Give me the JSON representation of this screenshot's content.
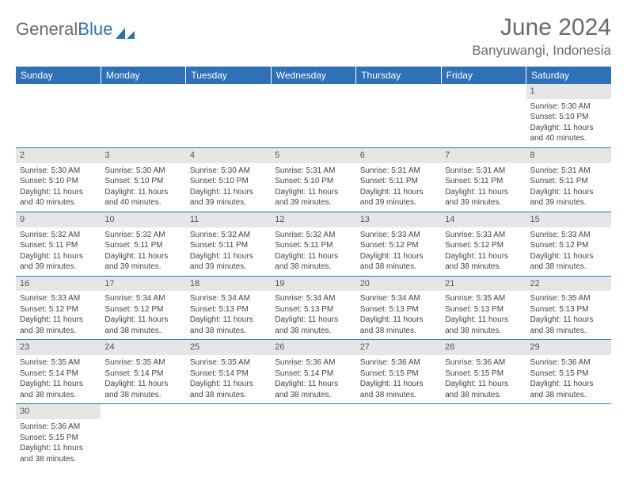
{
  "brand": {
    "part1": "General",
    "part2": "Blue"
  },
  "title": "June 2024",
  "location": "Banyuwangi, Indonesia",
  "colors": {
    "header_bg": "#2d72b8",
    "header_text": "#ffffff",
    "daynum_bg": "#e6e6e6",
    "text": "#444444",
    "title_color": "#6a6a6a",
    "row_border": "#2d72b8"
  },
  "weekdays": [
    "Sunday",
    "Monday",
    "Tuesday",
    "Wednesday",
    "Thursday",
    "Friday",
    "Saturday"
  ],
  "weeks": [
    [
      null,
      null,
      null,
      null,
      null,
      null,
      {
        "n": "1",
        "sr": "5:30 AM",
        "ss": "5:10 PM",
        "dl": "11 hours and 40 minutes."
      }
    ],
    [
      {
        "n": "2",
        "sr": "5:30 AM",
        "ss": "5:10 PM",
        "dl": "11 hours and 40 minutes."
      },
      {
        "n": "3",
        "sr": "5:30 AM",
        "ss": "5:10 PM",
        "dl": "11 hours and 40 minutes."
      },
      {
        "n": "4",
        "sr": "5:30 AM",
        "ss": "5:10 PM",
        "dl": "11 hours and 39 minutes."
      },
      {
        "n": "5",
        "sr": "5:31 AM",
        "ss": "5:10 PM",
        "dl": "11 hours and 39 minutes."
      },
      {
        "n": "6",
        "sr": "5:31 AM",
        "ss": "5:11 PM",
        "dl": "11 hours and 39 minutes."
      },
      {
        "n": "7",
        "sr": "5:31 AM",
        "ss": "5:11 PM",
        "dl": "11 hours and 39 minutes."
      },
      {
        "n": "8",
        "sr": "5:31 AM",
        "ss": "5:11 PM",
        "dl": "11 hours and 39 minutes."
      }
    ],
    [
      {
        "n": "9",
        "sr": "5:32 AM",
        "ss": "5:11 PM",
        "dl": "11 hours and 39 minutes."
      },
      {
        "n": "10",
        "sr": "5:32 AM",
        "ss": "5:11 PM",
        "dl": "11 hours and 39 minutes."
      },
      {
        "n": "11",
        "sr": "5:32 AM",
        "ss": "5:11 PM",
        "dl": "11 hours and 39 minutes."
      },
      {
        "n": "12",
        "sr": "5:32 AM",
        "ss": "5:11 PM",
        "dl": "11 hours and 38 minutes."
      },
      {
        "n": "13",
        "sr": "5:33 AM",
        "ss": "5:12 PM",
        "dl": "11 hours and 38 minutes."
      },
      {
        "n": "14",
        "sr": "5:33 AM",
        "ss": "5:12 PM",
        "dl": "11 hours and 38 minutes."
      },
      {
        "n": "15",
        "sr": "5:33 AM",
        "ss": "5:12 PM",
        "dl": "11 hours and 38 minutes."
      }
    ],
    [
      {
        "n": "16",
        "sr": "5:33 AM",
        "ss": "5:12 PM",
        "dl": "11 hours and 38 minutes."
      },
      {
        "n": "17",
        "sr": "5:34 AM",
        "ss": "5:12 PM",
        "dl": "11 hours and 38 minutes."
      },
      {
        "n": "18",
        "sr": "5:34 AM",
        "ss": "5:13 PM",
        "dl": "11 hours and 38 minutes."
      },
      {
        "n": "19",
        "sr": "5:34 AM",
        "ss": "5:13 PM",
        "dl": "11 hours and 38 minutes."
      },
      {
        "n": "20",
        "sr": "5:34 AM",
        "ss": "5:13 PM",
        "dl": "11 hours and 38 minutes."
      },
      {
        "n": "21",
        "sr": "5:35 AM",
        "ss": "5:13 PM",
        "dl": "11 hours and 38 minutes."
      },
      {
        "n": "22",
        "sr": "5:35 AM",
        "ss": "5:13 PM",
        "dl": "11 hours and 38 minutes."
      }
    ],
    [
      {
        "n": "23",
        "sr": "5:35 AM",
        "ss": "5:14 PM",
        "dl": "11 hours and 38 minutes."
      },
      {
        "n": "24",
        "sr": "5:35 AM",
        "ss": "5:14 PM",
        "dl": "11 hours and 38 minutes."
      },
      {
        "n": "25",
        "sr": "5:35 AM",
        "ss": "5:14 PM",
        "dl": "11 hours and 38 minutes."
      },
      {
        "n": "26",
        "sr": "5:36 AM",
        "ss": "5:14 PM",
        "dl": "11 hours and 38 minutes."
      },
      {
        "n": "27",
        "sr": "5:36 AM",
        "ss": "5:15 PM",
        "dl": "11 hours and 38 minutes."
      },
      {
        "n": "28",
        "sr": "5:36 AM",
        "ss": "5:15 PM",
        "dl": "11 hours and 38 minutes."
      },
      {
        "n": "29",
        "sr": "5:36 AM",
        "ss": "5:15 PM",
        "dl": "11 hours and 38 minutes."
      }
    ],
    [
      {
        "n": "30",
        "sr": "5:36 AM",
        "ss": "5:15 PM",
        "dl": "11 hours and 38 minutes."
      },
      null,
      null,
      null,
      null,
      null,
      null
    ]
  ],
  "labels": {
    "sunrise": "Sunrise:",
    "sunset": "Sunset:",
    "daylight": "Daylight:"
  }
}
